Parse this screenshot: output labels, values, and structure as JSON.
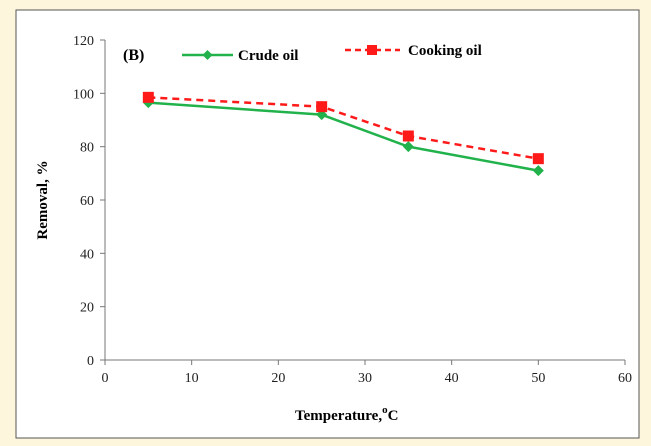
{
  "chart_data": {
    "type": "line",
    "panel_label": "(B)",
    "title": "",
    "xlabel": "Temperature,",
    "xlabel_sup": "o",
    "xlabel_unit": "C",
    "ylabel": "Removal, %",
    "xlim": [
      0,
      60
    ],
    "ylim": [
      0,
      120
    ],
    "x_ticks": [
      0,
      10,
      20,
      30,
      40,
      50,
      60
    ],
    "y_ticks": [
      0,
      20,
      40,
      60,
      80,
      100,
      120
    ],
    "grid": false,
    "legend_position": "top",
    "series": [
      {
        "name": "Crude oil",
        "x": [
          5,
          25,
          35,
          50
        ],
        "values": [
          96.5,
          92,
          80,
          71
        ],
        "color": "#21b24b",
        "line_style": "solid",
        "marker": "diamond"
      },
      {
        "name": "Cooking oil",
        "x": [
          5,
          25,
          35,
          50
        ],
        "values": [
          98.5,
          95,
          84,
          75.5
        ],
        "color": "#ff1a1a",
        "line_style": "dashed",
        "marker": "square"
      }
    ]
  },
  "colors": {
    "background": "#fdf6dd",
    "plot_background": "#ffffff",
    "frame": "#444444"
  }
}
